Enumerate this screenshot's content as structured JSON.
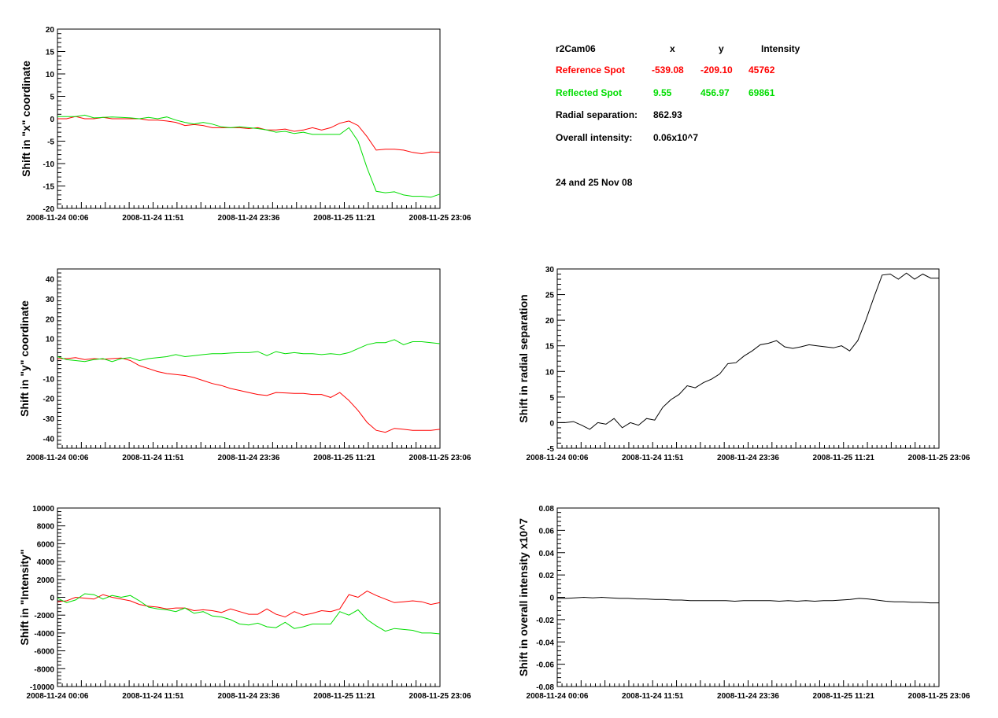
{
  "info": {
    "camera": "r2Cam06",
    "col_x": "x",
    "col_y": "y",
    "col_intensity": "Intensity",
    "reference": {
      "label": "Reference Spot",
      "x": "-539.08",
      "y": "-209.10",
      "intensity": "45762",
      "color": "#ff0000"
    },
    "reflected": {
      "label": "Reflected Spot",
      "x": "9.55",
      "y": "456.97",
      "intensity": "69861",
      "color": "#00dd00"
    },
    "radial_label": "Radial separation:",
    "radial_value": "862.93",
    "overall_label": "Overall intensity:",
    "overall_value": "0.06x10^7",
    "date_note": "24 and 25 Nov 08"
  },
  "chart_data": [
    {
      "id": "shift-x",
      "type": "line",
      "ylabel": "Shift in \"x\" coordinate",
      "xtick_labels": [
        "2008-11-24 00:06",
        "2008-11-24 11:51",
        "2008-11-24 23:36",
        "2008-11-25 11:21",
        "2008-11-25 23:06"
      ],
      "ylim": [
        -20,
        20
      ],
      "yticks": [
        -20,
        -15,
        -10,
        -5,
        0,
        5,
        10,
        15,
        20
      ],
      "series": [
        {
          "color": "#ff0000",
          "values": [
            0,
            0,
            0.5,
            0,
            0,
            0.3,
            0,
            0,
            0,
            0,
            -0.3,
            -0.3,
            -0.5,
            -0.8,
            -1.5,
            -1.3,
            -1.5,
            -2,
            -2,
            -2,
            -2,
            -2.2,
            -2,
            -2.5,
            -2.5,
            -2.3,
            -2.8,
            -2.5,
            -2,
            -2.5,
            -2,
            -1,
            -0.5,
            -1.5,
            -4,
            -7,
            -6.8,
            -6.8,
            -7,
            -7.5,
            -7.8,
            -7.4,
            -7.5
          ]
        },
        {
          "color": "#00dd00",
          "values": [
            0.5,
            0.5,
            0.5,
            0.8,
            0.2,
            0.3,
            0.4,
            0.3,
            0.2,
            0,
            0.3,
            0,
            0.4,
            -0.3,
            -0.8,
            -1.2,
            -0.8,
            -1.2,
            -1.8,
            -2,
            -1.8,
            -2,
            -2.2,
            -2.5,
            -3,
            -2.8,
            -3.3,
            -3,
            -3.5,
            -3.5,
            -3.5,
            -3.5,
            -2,
            -5,
            -11,
            -16.2,
            -16.5,
            -16.3,
            -17,
            -17.3,
            -17.3,
            -17.5,
            -16.8
          ]
        }
      ]
    },
    {
      "id": "shift-y",
      "type": "line",
      "ylabel": "Shift in \"y\" coordinate",
      "xtick_labels": [
        "2008-11-24 00:06",
        "2008-11-24 11:51",
        "2008-11-24 23:36",
        "2008-11-25 11:21",
        "2008-11-25 23:06"
      ],
      "ylim": [
        -45,
        45
      ],
      "yticks": [
        -40,
        -30,
        -20,
        -10,
        0,
        10,
        20,
        30,
        40
      ],
      "series": [
        {
          "color": "#ff0000",
          "values": [
            0,
            0,
            0.5,
            -0.5,
            0,
            -0.3,
            0,
            0.3,
            -1,
            -3.5,
            -5,
            -6.5,
            -7.5,
            -8,
            -8.5,
            -9.5,
            -11,
            -12.5,
            -13.5,
            -15,
            -16,
            -17,
            -18,
            -18.5,
            -17,
            -17.2,
            -17.5,
            -17.5,
            -18,
            -18,
            -19.5,
            -17,
            -21,
            -26,
            -32,
            -36,
            -37,
            -35,
            -35.5,
            -36,
            -36,
            -36,
            -35.5
          ]
        },
        {
          "color": "#00dd00",
          "values": [
            1,
            -0.5,
            -1,
            -1.5,
            -0.5,
            0,
            -1.5,
            0,
            0.5,
            -1,
            0,
            0.5,
            1,
            2,
            1,
            1.5,
            2,
            2.5,
            2.5,
            2.8,
            3,
            3,
            3.5,
            1.5,
            3.5,
            2.5,
            3,
            2.5,
            2.5,
            2,
            2.5,
            2,
            3,
            5,
            7,
            8,
            8,
            9.5,
            7,
            8.5,
            8.5,
            8,
            7.5
          ]
        }
      ]
    },
    {
      "id": "shift-intensity",
      "type": "line",
      "ylabel": "Shift in \"Intensity\"",
      "xtick_labels": [
        "2008-11-24 00:06",
        "2008-11-24 11:51",
        "2008-11-24 23:36",
        "2008-11-25 11:21",
        "2008-11-25 23:06"
      ],
      "ylim": [
        -10000,
        10000
      ],
      "yticks": [
        -10000,
        -8000,
        -6000,
        -4000,
        -2000,
        0,
        2000,
        4000,
        6000,
        8000,
        10000
      ],
      "series": [
        {
          "color": "#ff0000",
          "values": [
            -500,
            -400,
            0,
            -100,
            -200,
            300,
            0,
            -200,
            -400,
            -800,
            -1000,
            -1100,
            -1300,
            -1200,
            -1200,
            -1500,
            -1400,
            -1500,
            -1700,
            -1300,
            -1600,
            -1900,
            -1900,
            -1300,
            -1900,
            -2200,
            -1600,
            -2000,
            -1800,
            -1500,
            -1600,
            -1300,
            300,
            0,
            700,
            200,
            -200,
            -600,
            -500,
            -400,
            -500,
            -800,
            -600
          ]
        },
        {
          "color": "#00dd00",
          "values": [
            -100,
            -600,
            -300,
            400,
            300,
            -200,
            200,
            0,
            200,
            -400,
            -1100,
            -1300,
            -1400,
            -1600,
            -1200,
            -1800,
            -1600,
            -2100,
            -2200,
            -2500,
            -3000,
            -3100,
            -2900,
            -3300,
            -3400,
            -2800,
            -3500,
            -3300,
            -3000,
            -3000,
            -3000,
            -1600,
            -2000,
            -1400,
            -2500,
            -3200,
            -3800,
            -3500,
            -3600,
            -3700,
            -4000,
            -4000,
            -4100
          ]
        }
      ]
    },
    {
      "id": "shift-radial",
      "type": "line",
      "ylabel": "Shift in radial separation",
      "xtick_labels": [
        "2008-11-24 00:06",
        "2008-11-24 11:51",
        "2008-11-24 23:36",
        "2008-11-25 11:21",
        "2008-11-25 23:06"
      ],
      "ylim": [
        -5,
        30
      ],
      "yticks": [
        -5,
        0,
        5,
        10,
        15,
        20,
        25,
        30
      ],
      "series": [
        {
          "color": "#000000",
          "values": [
            0,
            0,
            0.2,
            -0.5,
            -1.3,
            0,
            -0.3,
            0.8,
            -1,
            0,
            -0.5,
            0.8,
            0.5,
            3,
            4.5,
            5.5,
            7.2,
            6.8,
            7.8,
            8.5,
            9.5,
            11.5,
            11.7,
            13,
            14,
            15.2,
            15.5,
            16,
            14.8,
            14.5,
            14.8,
            15.2,
            15,
            14.8,
            14.6,
            15,
            14,
            16,
            20,
            24.5,
            28.8,
            29,
            28,
            29.2,
            28,
            29,
            28.2,
            28.2
          ]
        }
      ]
    },
    {
      "id": "shift-overall",
      "type": "line",
      "ylabel": "Shift in overall intensity x10^7",
      "xtick_labels": [
        "2008-11-24 00:06",
        "2008-11-24 11:51",
        "2008-11-24 23:36",
        "2008-11-25 11:21",
        "2008-11-25 23:06"
      ],
      "ylim": [
        -0.08,
        0.08
      ],
      "yticks": [
        -0.08,
        -0.06,
        -0.04,
        -0.02,
        0,
        0.02,
        0.04,
        0.06,
        0.08
      ],
      "series": [
        {
          "color": "#000000",
          "values": [
            -0.001,
            -0.001,
            -0.0005,
            0,
            -0.0005,
            0,
            -0.0005,
            -0.001,
            -0.001,
            -0.0015,
            -0.0015,
            -0.002,
            -0.002,
            -0.0025,
            -0.0025,
            -0.003,
            -0.003,
            -0.003,
            -0.003,
            -0.003,
            -0.0035,
            -0.003,
            -0.003,
            -0.003,
            -0.003,
            -0.0035,
            -0.003,
            -0.0035,
            -0.003,
            -0.0035,
            -0.003,
            -0.003,
            -0.0025,
            -0.002,
            -0.001,
            -0.0015,
            -0.0025,
            -0.0035,
            -0.004,
            -0.004,
            -0.0045,
            -0.0045,
            -0.005,
            -0.005
          ]
        }
      ]
    }
  ]
}
